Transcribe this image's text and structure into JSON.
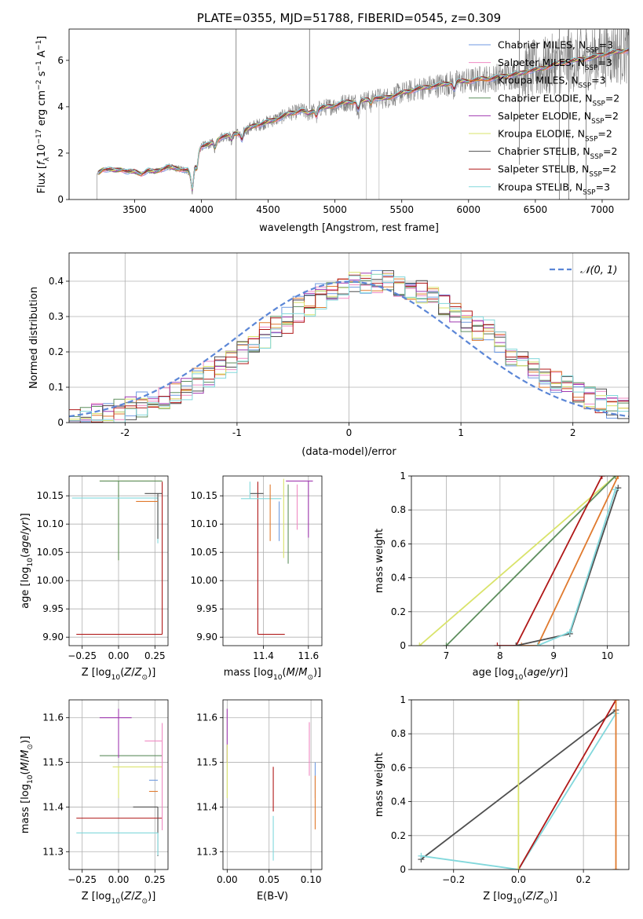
{
  "legend_series": [
    {
      "name": "Chabrier MILES, N_{SSP}=3",
      "color": "#6f9ae0"
    },
    {
      "name": "Salpeter MILES, N_{SSP}=3",
      "color": "#f08ac3"
    },
    {
      "name": "Kroupa MILES, N_{SSP}=3",
      "color": "#e07a2e"
    },
    {
      "name": "Chabrier ELODIE, N_{SSP}=2",
      "color": "#5f8f5f"
    },
    {
      "name": "Salpeter ELODIE, N_{SSP}=2",
      "color": "#a03ab0"
    },
    {
      "name": "Kroupa ELODIE, N_{SSP}=2",
      "color": "#d9e36a"
    },
    {
      "name": "Chabrier STELIB, N_{SSP}=2",
      "color": "#4f4f4f"
    },
    {
      "name": "Salpeter STELIB, N_{SSP}=2",
      "color": "#b01818"
    },
    {
      "name": "Kroupa STELIB, N_{SSP}=3",
      "color": "#82d8dc"
    }
  ],
  "chart_data": [
    {
      "id": "spectrum",
      "type": "line",
      "title": "PLATE=0355, MJD=51788, FIBERID=0545, z=0.309",
      "xlabel": "wavelength [Angstrom, rest frame]",
      "ylabel": "Flux [f_λ 10^{-17} erg cm^{-2} s^{-1} A^{-1}]",
      "xlim": [
        3010,
        7200
      ],
      "ylim": [
        0,
        7.35
      ],
      "xticks": [
        3500,
        4000,
        4500,
        5000,
        5500,
        6000,
        6500,
        7000
      ],
      "yticks": [
        0,
        2,
        4,
        6
      ],
      "grid": false,
      "legend_position": "top-right",
      "data_color": "#808080",
      "continuum": {
        "x": [
          3220,
          3260,
          3300,
          3350,
          3400,
          3450,
          3500,
          3550,
          3600,
          3650,
          3700,
          3750,
          3800,
          3850,
          3900,
          3930,
          3950,
          3980,
          4000,
          4050,
          4100,
          4150,
          4200,
          4250,
          4300,
          4350,
          4400,
          4450,
          4500,
          4550,
          4600,
          4650,
          4700,
          4750,
          4800,
          4850,
          4900,
          4950,
          5000,
          5050,
          5100,
          5150,
          5200,
          5250,
          5300,
          5350,
          5400,
          5450,
          5500,
          5550,
          5600,
          5650,
          5700,
          5750,
          5800,
          5850,
          5900,
          5950,
          6000,
          6050,
          6100,
          6150,
          6200,
          6250,
          6300,
          6350,
          6400,
          6450,
          6500,
          6550,
          6600,
          6650,
          6700,
          6750,
          6800,
          6850,
          6900,
          6950,
          7000,
          7050,
          7100,
          7150,
          7200
        ],
        "y": [
          1.1,
          1.3,
          1.3,
          1.25,
          1.3,
          1.2,
          1.2,
          1.1,
          1.25,
          1.2,
          1.3,
          1.4,
          1.35,
          1.3,
          1.25,
          0.9,
          1.4,
          2.1,
          2.3,
          2.35,
          2.5,
          2.7,
          2.75,
          2.85,
          2.85,
          3.05,
          3.2,
          3.25,
          3.35,
          3.45,
          3.55,
          3.7,
          3.75,
          3.85,
          3.7,
          3.85,
          3.95,
          4.0,
          4.05,
          4.15,
          4.2,
          4.2,
          4.25,
          4.3,
          4.4,
          4.35,
          4.4,
          4.5,
          4.6,
          4.65,
          4.75,
          4.8,
          4.85,
          4.9,
          4.95,
          5.0,
          5.05,
          5.1,
          5.1,
          5.15,
          5.2,
          5.2,
          5.25,
          5.3,
          5.35,
          5.4,
          5.45,
          5.55,
          5.6,
          5.65,
          5.75,
          5.85,
          5.9,
          5.95,
          6.0,
          6.05,
          6.1,
          6.15,
          6.25,
          6.3,
          6.35,
          6.4,
          6.45
        ]
      },
      "absorption_features": [
        {
          "x": 3933,
          "depth": 0.6
        },
        {
          "x": 3968,
          "depth": 0.5
        },
        {
          "x": 4102,
          "depth": 0.3
        },
        {
          "x": 4226,
          "depth": 0.25
        },
        {
          "x": 4304,
          "depth": 0.3
        },
        {
          "x": 4861,
          "depth": 0.3
        },
        {
          "x": 5175,
          "depth": 0.35
        },
        {
          "x": 5270,
          "depth": 0.2
        },
        {
          "x": 5893,
          "depth": 0.3
        }
      ],
      "spikes": [
        {
          "x": 4260,
          "y0": 0.0,
          "y1": 7.35,
          "color": "#808080"
        },
        {
          "x": 4810,
          "y0": 3.9,
          "y1": 7.35,
          "color": "#808080"
        },
        {
          "x": 5235,
          "y0": 0.0,
          "y1": 4.4,
          "color": "#c8c8c8"
        },
        {
          "x": 5330,
          "y0": 0.0,
          "y1": 4.5,
          "color": "#c8c8c8"
        },
        {
          "x": 6380,
          "y0": 1.5,
          "y1": 7.35,
          "color": "#808080"
        },
        {
          "x": 6680,
          "y0": 0.0,
          "y1": 7.35,
          "color": "#808080"
        },
        {
          "x": 6750,
          "y0": 0.0,
          "y1": 7.35,
          "color": "#808080"
        },
        {
          "x": 6880,
          "y0": 0.0,
          "y1": 7.35,
          "color": "#808080"
        }
      ]
    },
    {
      "id": "residuals",
      "type": "line",
      "xlabel": "(data-model)/error",
      "ylabel": "Normed distribution",
      "xlim": [
        -2.5,
        2.5
      ],
      "ylim": [
        0,
        0.48
      ],
      "xticks": [
        -2,
        -1,
        0,
        1,
        2
      ],
      "yticks": [
        0.0,
        0.1,
        0.2,
        0.3,
        0.4
      ],
      "grid": true,
      "legend_position": "top-right",
      "gaussian": {
        "name": "𝒩(0, 1)",
        "mean": 0,
        "sigma": 1,
        "color": "#5b86d6"
      },
      "histogram": {
        "bin_width": 0.1,
        "x_from": -2.5,
        "x_to": 2.5,
        "peak_shift": 0.25,
        "sigma": 1.02,
        "amplitude": 0.4,
        "scatter": 0.035
      }
    },
    {
      "id": "age_vs_Z",
      "type": "scatter",
      "xlabel": "Z [log10(Z/Z⊙)]",
      "ylabel": "age  [log10(age/yr)]",
      "xlim": [
        -0.34,
        0.34
      ],
      "ylim": [
        9.885,
        10.185
      ],
      "xticks": [
        -0.25,
        0.0,
        0.25
      ],
      "xticklabels": [
        "−0.25",
        "0.00",
        "0.25"
      ],
      "yticks": [
        9.9,
        9.95,
        10.0,
        10.05,
        10.1,
        10.15
      ],
      "yticklabels": [
        "9.90",
        "9.95",
        "10.00",
        "10.05",
        "10.10",
        "10.15"
      ],
      "grid": true,
      "points": [
        {
          "x": 0.3,
          "y": 9.905,
          "xerr": [
            0.59,
            0.0
          ],
          "yerr": [
            0.0,
            0.27
          ],
          "color": "#b01818"
        },
        {
          "x": 0.0,
          "y": 10.176,
          "xerr": [
            0.13,
            0.3
          ],
          "yerr": [
            0.14,
            0.0
          ],
          "color": "#d9e36a"
        },
        {
          "x": 0.0,
          "y": 10.176,
          "xerr": [
            0.13,
            0.3
          ],
          "yerr": [
            0.14,
            0.0
          ],
          "color": "#5f8f5f"
        },
        {
          "x": 0.27,
          "y": 10.146,
          "xerr": [
            0.59,
            0.0
          ],
          "yerr": [
            0.08,
            0.0
          ],
          "color": "#82d8dc"
        },
        {
          "x": 0.27,
          "y": 10.154,
          "xerr": [
            0.09,
            0.03
          ],
          "yerr": [
            0.08,
            0.0
          ],
          "color": "#4f4f4f"
        },
        {
          "x": 0.27,
          "y": 10.14,
          "xerr": [
            0.15,
            0.0
          ],
          "yerr": [
            0.0,
            0.0
          ],
          "color": "#e07a2e"
        }
      ]
    },
    {
      "id": "age_vs_mass",
      "type": "scatter",
      "xlabel": "mass [log10(M/M⊙)]",
      "xlim": [
        11.22,
        11.66
      ],
      "ylim": [
        9.885,
        10.185
      ],
      "xticks": [
        11.4,
        11.6
      ],
      "xticklabels": [
        "11.4",
        "11.6"
      ],
      "yticks": [
        9.9,
        9.95,
        10.0,
        10.05,
        10.1,
        10.15
      ],
      "yticklabels": [
        "9.90",
        "9.95",
        "10.00",
        "10.05",
        "10.10",
        "10.15"
      ],
      "grid": true,
      "points": [
        {
          "x": 11.375,
          "y": 9.905,
          "xerr": [
            0.0,
            0.12
          ],
          "yerr": [
            0.0,
            0.27
          ],
          "color": "#b01818"
        },
        {
          "x": 11.4,
          "y": 10.154,
          "xerr": [
            0.06,
            0.0
          ],
          "yerr": [
            0.0,
            0.0
          ],
          "color": "#4f4f4f"
        },
        {
          "x": 11.34,
          "y": 10.145,
          "xerr": [
            0.04,
            0.14
          ],
          "yerr": [
            0.0,
            0.03
          ],
          "color": "#82d8dc"
        },
        {
          "x": 11.43,
          "y": 10.14,
          "xerr": [
            0.0,
            0.0
          ],
          "yerr": [
            0.07,
            0.03
          ],
          "color": "#e07a2e"
        },
        {
          "x": 11.49,
          "y": 10.14,
          "xerr": [
            0.0,
            0.0
          ],
          "yerr": [
            0.1,
            0.04
          ],
          "color": "#d9e36a"
        },
        {
          "x": 11.51,
          "y": 10.14,
          "xerr": [
            0.0,
            0.0
          ],
          "yerr": [
            0.11,
            0.03
          ],
          "color": "#5f8f5f"
        },
        {
          "x": 11.55,
          "y": 10.14,
          "xerr": [
            0.0,
            0.0
          ],
          "yerr": [
            0.05,
            0.03
          ],
          "color": "#f08ac3"
        },
        {
          "x": 11.47,
          "y": 10.14,
          "xerr": [
            0.0,
            0.0
          ],
          "yerr": [
            0.07,
            0.0
          ],
          "color": "#6f9ae0"
        },
        {
          "x": 11.6,
          "y": 10.176,
          "xerr": [
            0.1,
            0.02
          ],
          "yerr": [
            0.1,
            0.0
          ],
          "color": "#a03ab0"
        }
      ]
    },
    {
      "id": "cumulative_age",
      "type": "line",
      "xlabel": "age  [log10(age/yr)]",
      "ylabel": "mass weight",
      "xlim": [
        6.35,
        10.4
      ],
      "ylim": [
        0,
        1
      ],
      "xticks": [
        7,
        8,
        9,
        10
      ],
      "yticks": [
        0.0,
        0.2,
        0.4,
        0.6,
        0.8,
        1.0
      ],
      "grid": true,
      "series": [
        {
          "color": "#d9e36a",
          "x": [
            6.5,
            10.15
          ],
          "y": [
            0.0,
            1.0
          ]
        },
        {
          "color": "#5f8f5f",
          "x": [
            7.0,
            10.15
          ],
          "y": [
            0.0,
            1.0
          ]
        },
        {
          "color": "#b01818",
          "x": [
            7.95,
            8.3,
            9.9
          ],
          "y": [
            0.0,
            0.0,
            1.0
          ]
        },
        {
          "color": "#e07a2e",
          "x": [
            8.4,
            8.7,
            10.2
          ],
          "y": [
            0.0,
            0.0,
            1.0
          ]
        },
        {
          "color": "#4f4f4f",
          "x": [
            8.3,
            9.3,
            10.2
          ],
          "y": [
            0.0,
            0.07,
            0.93
          ]
        },
        {
          "color": "#82d8dc",
          "x": [
            8.7,
            9.3,
            10.15
          ],
          "y": [
            0.0,
            0.08,
            0.92
          ]
        }
      ]
    },
    {
      "id": "mass_vs_Z",
      "type": "scatter",
      "xlabel": "Z [log10(Z/Z⊙)]",
      "ylabel": "mass [log10(M/M⊙)]",
      "xlim": [
        -0.34,
        0.34
      ],
      "ylim": [
        11.26,
        11.64
      ],
      "xticks": [
        -0.25,
        0.0,
        0.25
      ],
      "xticklabels": [
        "−0.25",
        "0.00",
        "0.25"
      ],
      "yticks": [
        11.3,
        11.4,
        11.5,
        11.6
      ],
      "yticklabels": [
        "11.3",
        "11.4",
        "11.5",
        "11.6"
      ],
      "grid": true,
      "points": [
        {
          "x": 0.3,
          "y": 11.375,
          "xerr": [
            0.59,
            0.0
          ],
          "yerr": [
            0.0,
            0.0
          ],
          "color": "#b01818"
        },
        {
          "x": 0.27,
          "y": 11.4,
          "xerr": [
            0.17,
            0.0
          ],
          "yerr": [
            0.11,
            0.0
          ],
          "color": "#4f4f4f"
        },
        {
          "x": 0.27,
          "y": 11.342,
          "xerr": [
            0.56,
            0.0
          ],
          "yerr": [
            0.05,
            0.0
          ],
          "color": "#82d8dc"
        },
        {
          "x": 0.27,
          "y": 11.435,
          "xerr": [
            0.06,
            0.0
          ],
          "yerr": [
            0.0,
            0.0
          ],
          "color": "#e07a2e"
        },
        {
          "x": 0.27,
          "y": 11.46,
          "xerr": [
            0.06,
            0.0
          ],
          "yerr": [
            0.0,
            0.0
          ],
          "color": "#6f9ae0"
        },
        {
          "x": 0.0,
          "y": 11.49,
          "xerr": [
            0.04,
            0.3
          ],
          "yerr": [
            0.07,
            0.0
          ],
          "color": "#d9e36a"
        },
        {
          "x": 0.0,
          "y": 11.515,
          "xerr": [
            0.13,
            0.3
          ],
          "yerr": [
            0.0,
            0.0
          ],
          "color": "#5f8f5f"
        },
        {
          "x": 0.3,
          "y": 11.548,
          "xerr": [
            0.12,
            0.0
          ],
          "yerr": [
            0.2,
            0.04
          ],
          "color": "#f08ac3"
        },
        {
          "x": 0.0,
          "y": 11.6,
          "xerr": [
            0.13,
            0.09
          ],
          "yerr": [
            0.09,
            0.02
          ],
          "color": "#a03ab0"
        }
      ]
    },
    {
      "id": "mass_vs_EBV",
      "type": "scatter",
      "xlabel": "E(B-V)",
      "xlim": [
        -0.005,
        0.113
      ],
      "ylim": [
        11.26,
        11.64
      ],
      "xticks": [
        0.0,
        0.05,
        0.1
      ],
      "xticklabels": [
        "0.00",
        "0.05",
        "0.10"
      ],
      "yticks": [
        11.3,
        11.4,
        11.5,
        11.6
      ],
      "yticklabels": [
        "11.3",
        "11.4",
        "11.5",
        "11.6"
      ],
      "grid": true,
      "points": [
        {
          "x": 0.0,
          "y": 11.56,
          "xerr": [
            0.0,
            0.0
          ],
          "yerr": [
            0.06,
            0.06
          ],
          "color": "#a03ab0"
        },
        {
          "x": 0.0,
          "y": 11.48,
          "xerr": [
            0.0,
            0.0
          ],
          "yerr": [
            0.06,
            0.06
          ],
          "color": "#d9e36a"
        },
        {
          "x": 0.055,
          "y": 11.44,
          "xerr": [
            0.0,
            0.0
          ],
          "yerr": [
            0.05,
            0.05
          ],
          "color": "#b01818"
        },
        {
          "x": 0.055,
          "y": 11.33,
          "xerr": [
            0.0,
            0.0
          ],
          "yerr": [
            0.05,
            0.05
          ],
          "color": "#82d8dc"
        },
        {
          "x": 0.098,
          "y": 11.53,
          "xerr": [
            0.0,
            0.0
          ],
          "yerr": [
            0.06,
            0.06
          ],
          "color": "#f08ac3"
        },
        {
          "x": 0.105,
          "y": 11.46,
          "xerr": [
            0.0,
            0.0
          ],
          "yerr": [
            0.04,
            0.04
          ],
          "color": "#6f9ae0"
        },
        {
          "x": 0.105,
          "y": 11.41,
          "xerr": [
            0.0,
            0.0
          ],
          "yerr": [
            0.06,
            0.06
          ],
          "color": "#e07a2e"
        }
      ]
    },
    {
      "id": "cumulative_Z",
      "type": "line",
      "xlabel": "Z [log10(Z/Z⊙)]",
      "ylabel": "mass weight",
      "xlim": [
        -0.33,
        0.34
      ],
      "ylim": [
        0,
        1
      ],
      "xticks": [
        -0.2,
        0.0,
        0.2
      ],
      "xticklabels": [
        "−0.2",
        "0.0",
        "0.2"
      ],
      "yticks": [
        0.0,
        0.2,
        0.4,
        0.6,
        0.8,
        1.0
      ],
      "grid": true,
      "series": [
        {
          "color": "#4f4f4f",
          "x": [
            -0.3,
            0.3
          ],
          "y": [
            0.06,
            0.94
          ]
        },
        {
          "color": "#82d8dc",
          "x": [
            -0.3,
            0.0,
            0.3
          ],
          "y": [
            0.08,
            0.0,
            0.92
          ]
        },
        {
          "color": "#b01818",
          "x": [
            0.0,
            0.3
          ],
          "y": [
            0.0,
            1.0
          ]
        },
        {
          "color": "#e07a2e",
          "x": [
            0.3,
            0.3
          ],
          "y": [
            0.0,
            1.0
          ]
        },
        {
          "color": "#d9e36a",
          "x": [
            0.0,
            0.0
          ],
          "y": [
            0.0,
            1.0
          ]
        }
      ]
    }
  ]
}
